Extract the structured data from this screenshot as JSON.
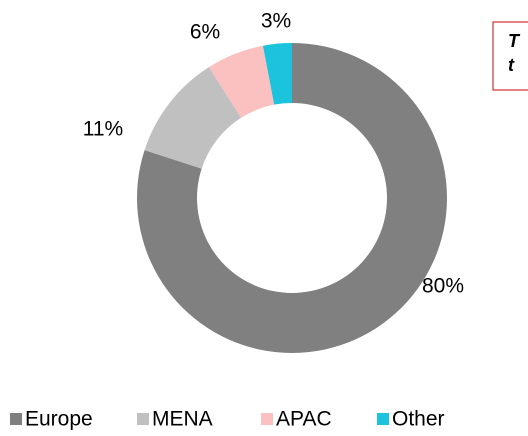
{
  "chart_data": {
    "type": "donut",
    "categories": [
      "Europe",
      "MENA",
      "APAC",
      "Other"
    ],
    "values": [
      80,
      11,
      6,
      3
    ],
    "value_labels": [
      "80%",
      "11%",
      "6%",
      "3%"
    ],
    "colors": [
      "#808080",
      "#c0c0c0",
      "#fbc0c0",
      "#1bc3dc"
    ],
    "legend": "bottom",
    "annotation": [
      "T",
      "t"
    ]
  }
}
